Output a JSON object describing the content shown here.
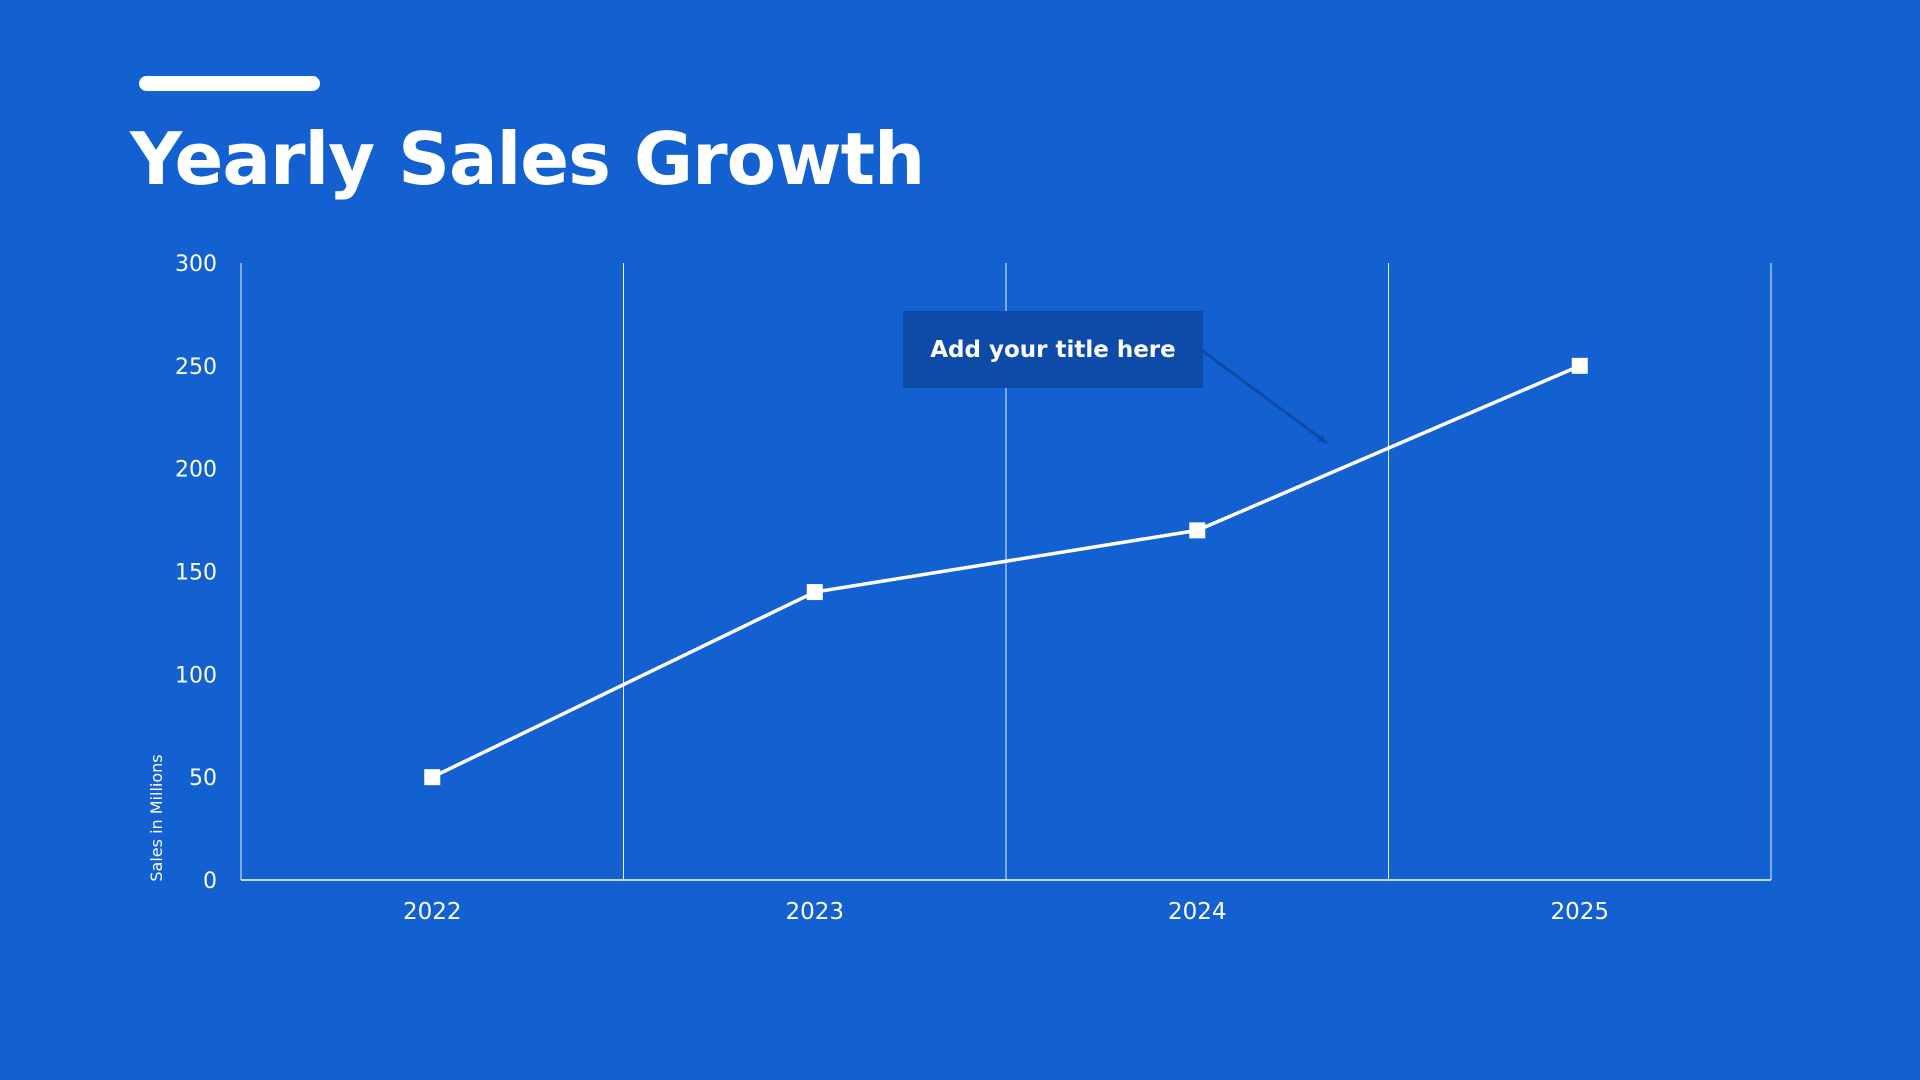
{
  "slide": {
    "title": "Yearly Sales Growth"
  },
  "callout": {
    "text": "Add your title here",
    "points_to_category": "2024"
  },
  "colors": {
    "background": "#1360D0",
    "foreground": "#ffffff",
    "callout_background": "#0E4BA8",
    "callout_arrow": "#0E4BA8"
  },
  "chart_data": {
    "type": "line",
    "title": "",
    "xlabel": "",
    "ylabel": "Sales in Millions",
    "categories": [
      "2022",
      "2023",
      "2024",
      "2025"
    ],
    "series": [
      {
        "values": [
          50,
          140,
          170,
          250
        ],
        "marker": "square"
      }
    ],
    "ylim": [
      0,
      300
    ],
    "yticks": [
      0,
      50,
      100,
      150,
      200,
      250,
      300
    ],
    "grid": "vertical category separators",
    "legend": "none"
  }
}
